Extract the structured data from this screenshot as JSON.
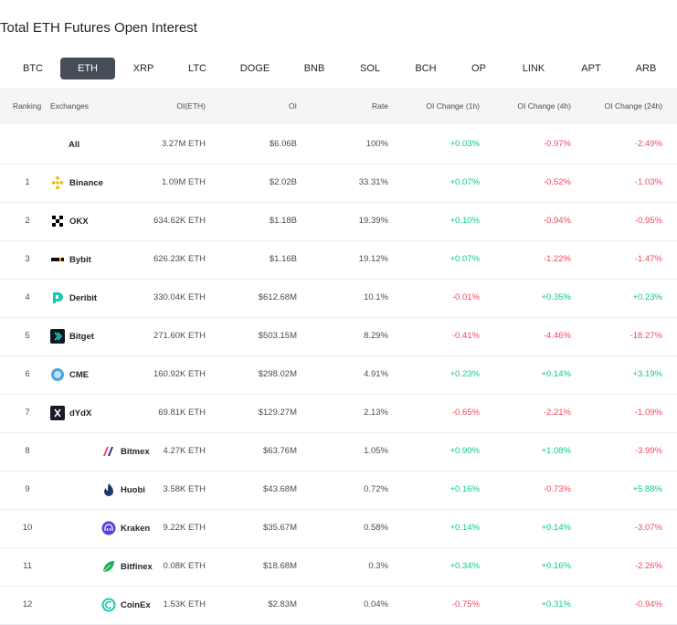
{
  "title": "Total ETH Futures Open Interest",
  "tabs": [
    "BTC",
    "ETH",
    "XRP",
    "LTC",
    "DOGE",
    "BNB",
    "SOL",
    "BCH",
    "OP",
    "LINK",
    "APT",
    "ARB"
  ],
  "active_tab": "ETH",
  "columns": {
    "ranking": "Ranking",
    "exchanges": "Exchanges",
    "oi_eth": "OI(ETH)",
    "oi": "OI",
    "rate": "Rate",
    "chg1h": "OI Change (1h)",
    "chg4h": "OI Change (4h)",
    "chg24h": "OI Change (24h)"
  },
  "rows": [
    {
      "rank": "",
      "name": "All",
      "icon": "",
      "oi_eth": "3.27M ETH",
      "oi": "$6.06B",
      "rate": "100%",
      "chg1h": "+0.03%",
      "chg4h": "-0.97%",
      "chg24h": "-2.49%"
    },
    {
      "rank": "1",
      "name": "Binance",
      "icon": "binance-icon",
      "oi_eth": "1.09M ETH",
      "oi": "$2.02B",
      "rate": "33.31%",
      "chg1h": "+0.07%",
      "chg4h": "-0.52%",
      "chg24h": "-1.03%"
    },
    {
      "rank": "2",
      "name": "OKX",
      "icon": "okx-icon",
      "oi_eth": "634.62K ETH",
      "oi": "$1.18B",
      "rate": "19.39%",
      "chg1h": "+0.10%",
      "chg4h": "-0.94%",
      "chg24h": "-0.95%"
    },
    {
      "rank": "3",
      "name": "Bybit",
      "icon": "bybit-icon",
      "oi_eth": "626.23K ETH",
      "oi": "$1.16B",
      "rate": "19.12%",
      "chg1h": "+0.07%",
      "chg4h": "-1.22%",
      "chg24h": "-1.47%"
    },
    {
      "rank": "4",
      "name": "Deribit",
      "icon": "deribit-icon",
      "oi_eth": "330.04K ETH",
      "oi": "$612.68M",
      "rate": "10.1%",
      "chg1h": "-0.01%",
      "chg4h": "+0.35%",
      "chg24h": "+0.23%"
    },
    {
      "rank": "5",
      "name": "Bitget",
      "icon": "bitget-icon",
      "oi_eth": "271.60K ETH",
      "oi": "$503.15M",
      "rate": "8.29%",
      "chg1h": "-0.41%",
      "chg4h": "-4.46%",
      "chg24h": "-18.27%"
    },
    {
      "rank": "6",
      "name": "CME",
      "icon": "cme-icon",
      "oi_eth": "160.92K ETH",
      "oi": "$298.02M",
      "rate": "4.91%",
      "chg1h": "+0.23%",
      "chg4h": "+0.14%",
      "chg24h": "+3.19%"
    },
    {
      "rank": "7",
      "name": "dYdX",
      "icon": "dydx-icon",
      "oi_eth": "69.81K ETH",
      "oi": "$129.27M",
      "rate": "2.13%",
      "chg1h": "-0.65%",
      "chg4h": "-2.21%",
      "chg24h": "-1.09%"
    },
    {
      "rank": "8",
      "name": "Bitmex",
      "icon": "bitmex-icon",
      "oi_eth": "4.27K ETH",
      "oi": "$63.76M",
      "rate": "1.05%",
      "chg1h": "+0.90%",
      "chg4h": "+1.08%",
      "chg24h": "-3.99%"
    },
    {
      "rank": "9",
      "name": "Huobi",
      "icon": "huobi-icon",
      "oi_eth": "3.58K ETH",
      "oi": "$43.68M",
      "rate": "0.72%",
      "chg1h": "+0.16%",
      "chg4h": "-0.73%",
      "chg24h": "+5.88%"
    },
    {
      "rank": "10",
      "name": "Kraken",
      "icon": "kraken-icon",
      "oi_eth": "9.22K ETH",
      "oi": "$35.67M",
      "rate": "0.58%",
      "chg1h": "+0.14%",
      "chg4h": "+0.14%",
      "chg24h": "-3.07%"
    },
    {
      "rank": "11",
      "name": "Bitfinex",
      "icon": "bitfinex-icon",
      "oi_eth": "0.08K ETH",
      "oi": "$18.68M",
      "rate": "0.3%",
      "chg1h": "+0.34%",
      "chg4h": "+0.16%",
      "chg24h": "-2.26%"
    },
    {
      "rank": "12",
      "name": "CoinEx",
      "icon": "coinex-icon",
      "oi_eth": "1.53K ETH",
      "oi": "$2.83M",
      "rate": "0.04%",
      "chg1h": "-0.75%",
      "chg4h": "+0.31%",
      "chg24h": "-0.94%"
    }
  ],
  "colors": {
    "positive": "#0ecb81",
    "negative": "#f6465d",
    "active_tab_bg": "#474d57",
    "header_bg": "#f5f5f5"
  }
}
